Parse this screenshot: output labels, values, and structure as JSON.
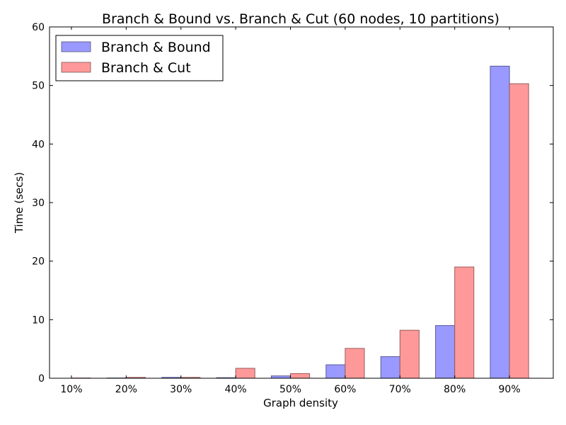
{
  "chart_data": {
    "type": "bar",
    "title": "Branch & Bound vs. Branch & Cut (60 nodes, 10 partitions)",
    "xlabel": "Graph density",
    "ylabel": "Time (secs)",
    "categories": [
      "10%",
      "20%",
      "30%",
      "40%",
      "50%",
      "60%",
      "70%",
      "80%",
      "90%"
    ],
    "series": [
      {
        "name": "Branch & Bound",
        "color": "#9999ff",
        "values": [
          0.0,
          0.05,
          0.15,
          0.1,
          0.4,
          2.3,
          3.7,
          9.0,
          53.3
        ]
      },
      {
        "name": "Branch & Cut",
        "color": "#ff9999",
        "values": [
          0.05,
          0.15,
          0.15,
          1.7,
          0.8,
          5.1,
          8.2,
          19.0,
          50.3
        ]
      }
    ],
    "ylim": [
      0,
      60
    ],
    "yticks": [
      "0",
      "10",
      "20",
      "30",
      "40",
      "50",
      "60"
    ],
    "grid": false,
    "legend_position": "top-left"
  }
}
